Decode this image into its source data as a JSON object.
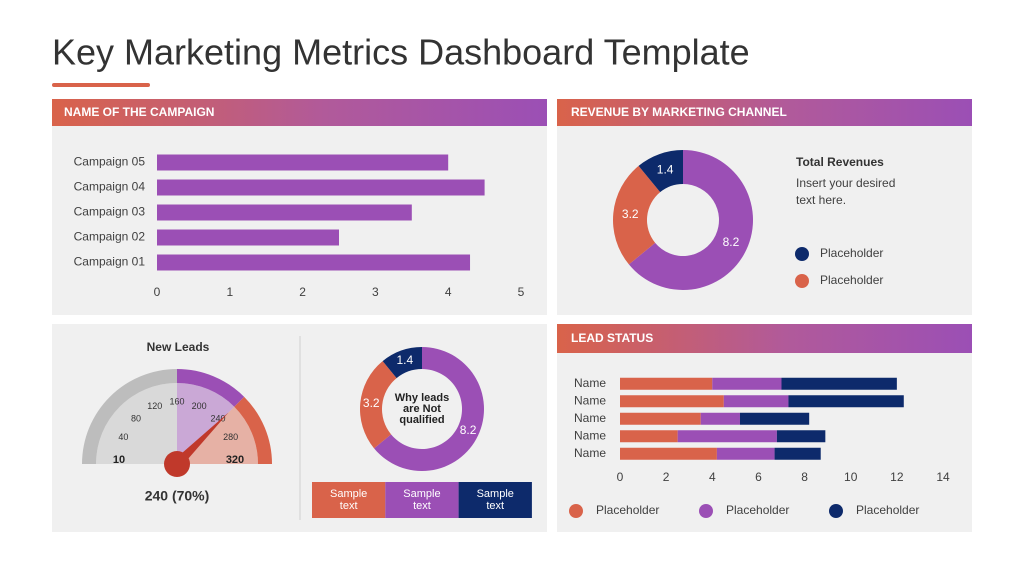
{
  "title": "Key Marketing Metrics Dashboard Template",
  "chart_data": [
    {
      "type": "hbar",
      "title": "NAME OF THE CAMPAIGN",
      "categories": [
        "Campaign 05",
        "Campaign 04",
        "Campaign 03",
        "Campaign 02",
        "Campaign 01"
      ],
      "values": [
        4,
        4.5,
        3.5,
        2.5,
        4.3
      ],
      "color": "#9b4fb5",
      "xlim": [
        0,
        5
      ],
      "xticks": [
        0,
        1,
        2,
        3,
        4,
        5
      ]
    },
    {
      "type": "donut",
      "title": "REVENUE BY MARKETING CHANNEL",
      "values": [
        8.2,
        3.2,
        1.4
      ],
      "colors": [
        "#9b4fb5",
        "#d9634a",
        "#0d2a6b"
      ],
      "note_title": "Total Revenues",
      "note": "Insert your desired text here.",
      "legend": [
        {
          "label": "Placeholder",
          "color": "#0d2a6b"
        },
        {
          "label": "Placeholder",
          "color": "#d9634a"
        }
      ]
    },
    {
      "type": "gauge",
      "title": "New Leads",
      "ticks": [
        10,
        40,
        80,
        120,
        160,
        200,
        240,
        280,
        320
      ],
      "bands": [
        {
          "from": 10,
          "to": 160,
          "color": "#bdbdbd"
        },
        {
          "from": 160,
          "to": 240,
          "color": "#9b4fb5"
        },
        {
          "from": 240,
          "to": 320,
          "color": "#d9634a"
        }
      ],
      "value": 240,
      "value_label": "240 (70%)",
      "needle_color": "#c0392b"
    },
    {
      "type": "donut",
      "center_label": "Why leads are Not qualified",
      "values": [
        8.2,
        3.2,
        1.4
      ],
      "colors": [
        "#9b4fb5",
        "#d9634a",
        "#0d2a6b"
      ],
      "legend": [
        {
          "label": "Sample text",
          "color": "#d9634a"
        },
        {
          "label": "Sample text",
          "color": "#9b4fb5"
        },
        {
          "label": "Sample text",
          "color": "#0d2a6b"
        }
      ]
    },
    {
      "type": "stacked-hbar",
      "title": "LEAD STATUS",
      "categories": [
        "Name",
        "Name",
        "Name",
        "Name",
        "Name"
      ],
      "series": [
        {
          "name": "Placeholder",
          "color": "#d9634a",
          "values": [
            4,
            4.5,
            3.5,
            2.5,
            4.2
          ]
        },
        {
          "name": "Placeholder",
          "color": "#9b4fb5",
          "values": [
            3,
            2.8,
            1.7,
            4.3,
            2.5
          ]
        },
        {
          "name": "Placeholder",
          "color": "#0d2a6b",
          "values": [
            5,
            5,
            3,
            2.1,
            2
          ]
        }
      ],
      "xlim": [
        0,
        14
      ],
      "xticks": [
        0,
        2,
        4,
        6,
        8,
        10,
        12,
        14
      ]
    }
  ]
}
